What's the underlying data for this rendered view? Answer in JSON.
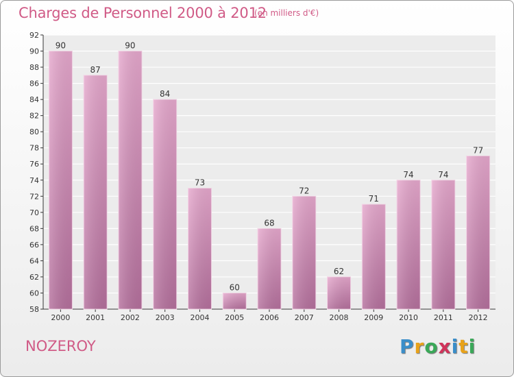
{
  "title": "Charges de Personnel 2000 à 2012",
  "subtitle": "(en milliers d'€)",
  "commune": "NOZEROY",
  "logo": {
    "letters": [
      "P",
      "r",
      "o",
      "x",
      "i",
      "t",
      "i"
    ],
    "colors": [
      "#3a8ec9",
      "#e8a21a",
      "#3aa858",
      "#d0335a",
      "#3a8ec9",
      "#e8a21a",
      "#3aa858"
    ]
  },
  "colors": {
    "accent": "#d05a86",
    "bar_top": "#e6a8cd",
    "bar_bottom": "#b5709d"
  },
  "chart_data": {
    "type": "bar",
    "categories": [
      "2000",
      "2001",
      "2002",
      "2003",
      "2004",
      "2005",
      "2006",
      "2007",
      "2008",
      "2009",
      "2010",
      "2011",
      "2012"
    ],
    "values": [
      90,
      87,
      90,
      84,
      73,
      60,
      68,
      72,
      62,
      71,
      74,
      74,
      77
    ],
    "ylim": [
      58,
      92
    ],
    "yticks": [
      58,
      60,
      62,
      64,
      66,
      68,
      70,
      72,
      74,
      76,
      78,
      80,
      82,
      84,
      86,
      88,
      90,
      92
    ],
    "grid": true,
    "data_labels": true
  }
}
